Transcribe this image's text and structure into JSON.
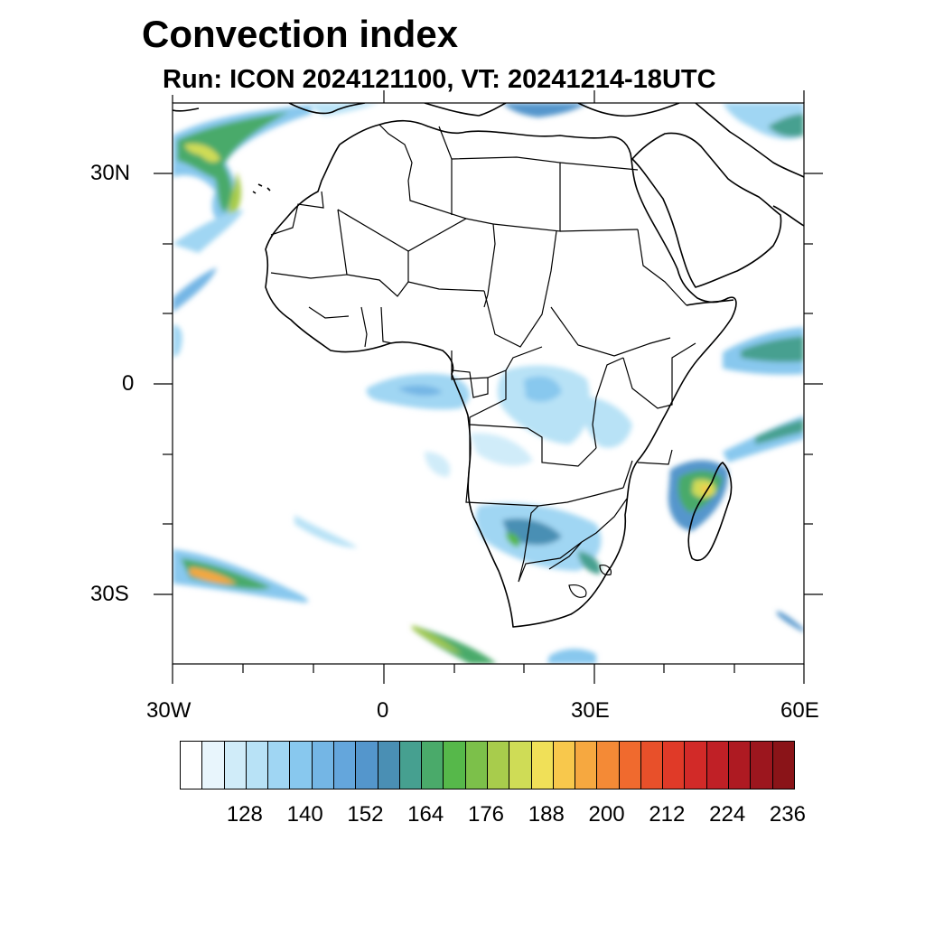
{
  "title": "Convection index",
  "subtitle": "Run: ICON 2024121100,  VT: 20241214-18UTC",
  "map": {
    "lon_range": [
      -30,
      60
    ],
    "lat_range": [
      -40,
      40
    ],
    "lon_labels": [
      "30W",
      "0",
      "30E",
      "60E"
    ],
    "lat_labels": [
      "30N",
      "0",
      "30S"
    ],
    "projection": "lat-lon"
  },
  "colorbar": {
    "labels": [
      "128",
      "140",
      "152",
      "164",
      "176",
      "188",
      "200",
      "212",
      "224",
      "236"
    ],
    "colors": [
      "#ffffff",
      "#e8f5fc",
      "#d0ecf9",
      "#b8e2f6",
      "#a0d6f3",
      "#88c8ee",
      "#74b6e5",
      "#64a6dc",
      "#5496cc",
      "#4a8fb4",
      "#46a090",
      "#4aaa6a",
      "#56b84a",
      "#7cc04a",
      "#a8cc4c",
      "#cfdc56",
      "#f0e058",
      "#f8c84c",
      "#f6a840",
      "#f48a36",
      "#f06a2e",
      "#e8502a",
      "#e03a28",
      "#d22a28",
      "#c02026",
      "#ae1a22",
      "#9c161e",
      "#8a1418"
    ]
  },
  "field": {
    "description": "Convection index filled contours over Africa",
    "color_scale": "white-blue-green-yellow-red"
  }
}
